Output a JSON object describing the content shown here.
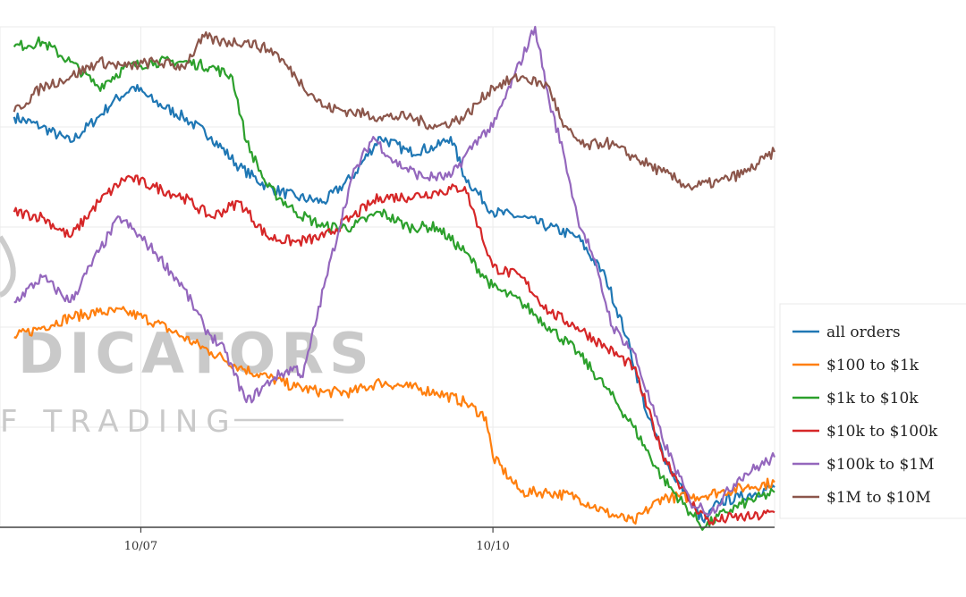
{
  "chart_data": {
    "type": "line",
    "title": "",
    "xlabel": "",
    "ylabel": "",
    "xlim": [
      -2.0,
      9.0
    ],
    "ylim": [
      0,
      100
    ],
    "x_ticks": [
      {
        "x": 0,
        "label": "10/07"
      },
      {
        "x": 5,
        "label": "10/10"
      }
    ],
    "grid": true,
    "legend_position": "right",
    "watermark": {
      "line1": "DICATORS",
      "line2": "F TRADING"
    },
    "series": [
      {
        "name": "all orders",
        "color": "#1f77b4",
        "x": [
          -1.8,
          -1.4,
          -1.0,
          -0.6,
          -0.4,
          -0.1,
          0.2,
          0.6,
          1.0,
          1.4,
          1.8,
          2.2,
          2.6,
          3.0,
          3.4,
          3.8,
          4.2,
          4.4,
          4.6,
          5.0,
          5.4,
          5.8,
          6.2,
          6.6,
          6.9,
          7.2,
          7.5,
          7.8,
          8.0,
          8.2,
          8.5,
          9.0
        ],
        "y": [
          82,
          80,
          77,
          82,
          85,
          88,
          85,
          82,
          78,
          72,
          68,
          66,
          65,
          70,
          78,
          75,
          76,
          78,
          70,
          63,
          62,
          60,
          58,
          50,
          38,
          22,
          12,
          5,
          1,
          5,
          6,
          8
        ]
      },
      {
        "name": "$100 to $1k",
        "color": "#ff7f0e",
        "x": [
          -1.8,
          -1.4,
          -1.0,
          -0.6,
          -0.2,
          0.2,
          0.6,
          1.0,
          1.4,
          1.8,
          2.2,
          2.6,
          3.0,
          3.4,
          3.8,
          4.2,
          4.6,
          4.9,
          5.0,
          5.4,
          5.8,
          6.2,
          6.6,
          7.0,
          7.4,
          7.8,
          8.2,
          8.6,
          9.0
        ],
        "y": [
          38,
          40,
          42,
          43,
          43,
          41,
          38,
          35,
          32,
          30,
          28,
          27,
          27,
          29,
          28,
          27,
          25,
          22,
          14,
          7,
          7,
          6,
          3,
          1,
          6,
          6,
          7,
          8,
          9
        ]
      },
      {
        "name": "$1k to $10k",
        "color": "#2ca02c",
        "x": [
          -1.8,
          -1.4,
          -1.0,
          -0.6,
          -0.2,
          0.2,
          0.6,
          1.0,
          1.3,
          1.5,
          1.8,
          2.2,
          2.6,
          3.0,
          3.4,
          3.8,
          4.2,
          4.6,
          5.0,
          5.4,
          5.8,
          6.2,
          6.6,
          7.0,
          7.4,
          7.8,
          8.0,
          8.3,
          8.6,
          9.0
        ],
        "y": [
          96,
          97,
          93,
          88,
          92,
          93,
          93,
          92,
          90,
          77,
          68,
          63,
          60,
          60,
          63,
          60,
          60,
          55,
          48,
          45,
          40,
          35,
          28,
          20,
          10,
          3,
          0,
          3,
          5,
          7
        ]
      },
      {
        "name": "$10k to $100k",
        "color": "#d62728",
        "x": [
          -1.8,
          -1.4,
          -1.0,
          -0.6,
          -0.2,
          0.2,
          0.6,
          1.0,
          1.4,
          1.8,
          2.2,
          2.6,
          3.0,
          3.4,
          3.8,
          4.2,
          4.6,
          4.8,
          5.0,
          5.4,
          5.8,
          6.2,
          6.6,
          7.0,
          7.4,
          7.8,
          8.1,
          8.4,
          8.7,
          9.0
        ],
        "y": [
          63,
          62,
          58,
          65,
          70,
          68,
          66,
          62,
          65,
          58,
          57,
          58,
          62,
          66,
          66,
          67,
          68,
          60,
          52,
          50,
          43,
          40,
          36,
          32,
          15,
          5,
          1,
          2,
          2,
          3
        ]
      },
      {
        "name": "$100k to $1M",
        "color": "#9467bd",
        "x": [
          -1.8,
          -1.4,
          -1.0,
          -0.6,
          -0.3,
          0.2,
          0.6,
          0.9,
          1.2,
          1.5,
          1.9,
          2.2,
          2.3,
          2.6,
          3.0,
          3.3,
          3.6,
          4.0,
          4.4,
          4.8,
          5.0,
          5.3,
          5.6,
          5.8,
          6.0,
          6.2,
          6.4,
          6.7,
          7.0,
          7.4,
          7.8,
          8.1,
          8.5,
          9.0
        ],
        "y": [
          45,
          50,
          45,
          55,
          62,
          55,
          48,
          40,
          35,
          25,
          30,
          32,
          30,
          48,
          70,
          78,
          73,
          70,
          70,
          78,
          80,
          90,
          100,
          85,
          75,
          62,
          55,
          40,
          35,
          18,
          5,
          3,
          10,
          14
        ]
      },
      {
        "name": "$1M to $10M",
        "color": "#8c564b",
        "x": [
          -1.8,
          -1.4,
          -1.0,
          -0.6,
          -0.2,
          0.2,
          0.6,
          0.9,
          1.1,
          1.5,
          1.9,
          2.2,
          2.6,
          3.0,
          3.4,
          3.8,
          4.2,
          4.6,
          5.0,
          5.4,
          5.8,
          6.0,
          6.3,
          6.6,
          7.0,
          7.4,
          7.8,
          8.2,
          8.6,
          9.0
        ],
        "y": [
          83,
          88,
          90,
          93,
          92,
          93,
          92,
          98,
          97,
          97,
          95,
          90,
          84,
          83,
          82,
          82,
          80,
          82,
          88,
          90,
          88,
          80,
          76,
          77,
          74,
          71,
          68,
          69,
          71,
          75
        ]
      }
    ]
  }
}
